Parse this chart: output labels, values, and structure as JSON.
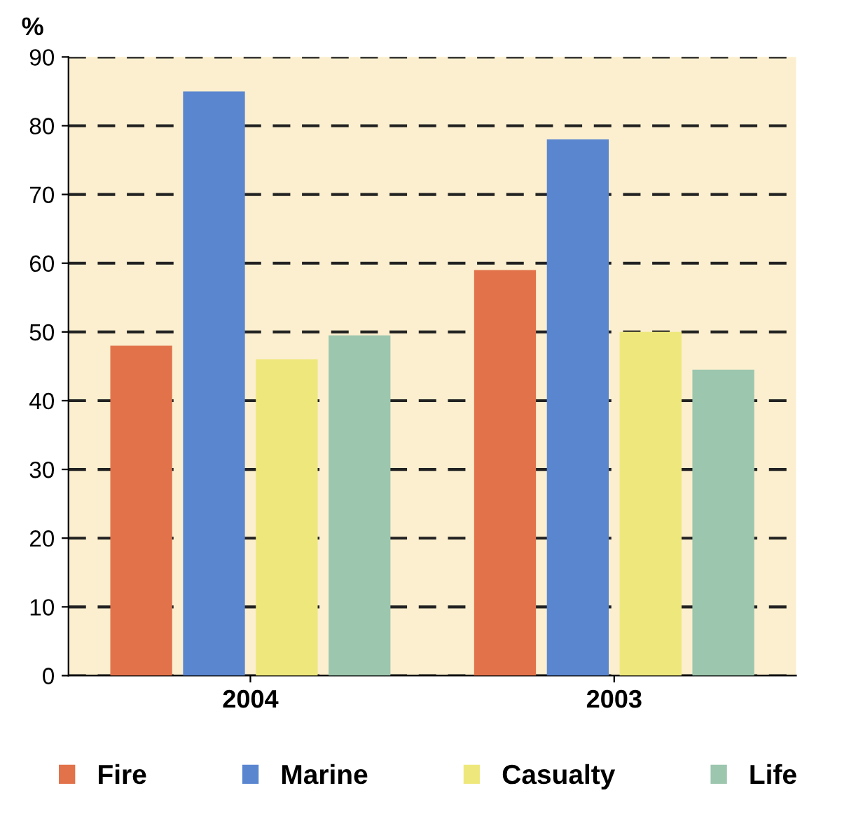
{
  "chart_data": {
    "type": "bar",
    "ylabel": "%",
    "categories": [
      "2004",
      "2003"
    ],
    "series": [
      {
        "name": "Fire",
        "color": "#e2724a",
        "values": [
          48,
          59
        ]
      },
      {
        "name": "Marine",
        "color": "#5a86d0",
        "values": [
          85,
          78
        ]
      },
      {
        "name": "Casualty",
        "color": "#eee87c",
        "values": [
          46,
          50
        ]
      },
      {
        "name": "Life",
        "color": "#9cc6ae",
        "values": [
          49.5,
          44.5
        ]
      }
    ],
    "ylim": [
      0,
      90
    ],
    "yticks": [
      0,
      10,
      20,
      30,
      40,
      50,
      60,
      70,
      80,
      90
    ],
    "grid": "y",
    "legend": "bottom"
  }
}
